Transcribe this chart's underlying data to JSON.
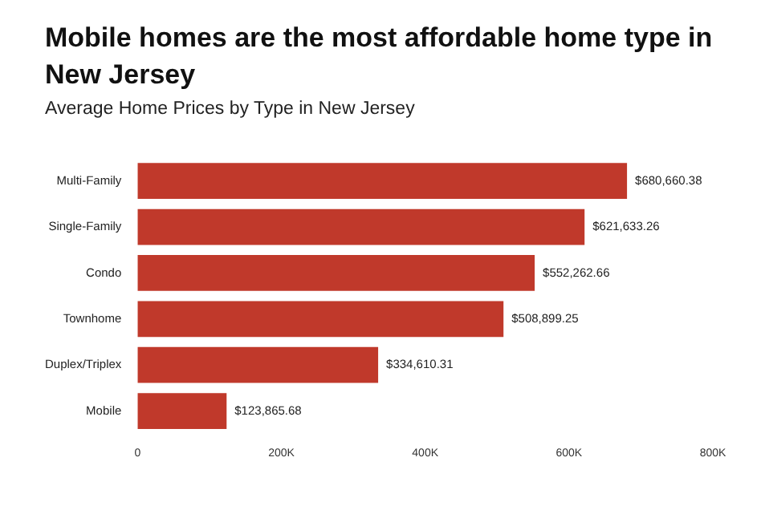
{
  "chart_data": {
    "type": "bar",
    "orientation": "horizontal",
    "title": "Mobile homes are the most affordable home type in New Jersey",
    "subtitle": "Average Home Prices by Type in New Jersey",
    "categories": [
      "Multi-Family",
      "Single-Family",
      "Condo",
      "Townhome",
      "Duplex/Triplex",
      "Mobile"
    ],
    "values": [
      680660.38,
      621633.26,
      552262.66,
      508899.25,
      334610.31,
      123865.68
    ],
    "value_labels": [
      "$680,660.38",
      "$621,633.26",
      "$552,262.66",
      "$508,899.25",
      "$334,610.31",
      "$123,865.68"
    ],
    "color": "#c0392b",
    "xlim": [
      0,
      800000
    ],
    "xticks": [
      0,
      {
        "value": 200000,
        "label": "200K"
      },
      {
        "value": 400000,
        "label": "400K"
      },
      {
        "value": 600000,
        "label": "600K"
      },
      {
        "value": 800000,
        "label": "800K"
      }
    ],
    "grid": false,
    "legend": false
  }
}
